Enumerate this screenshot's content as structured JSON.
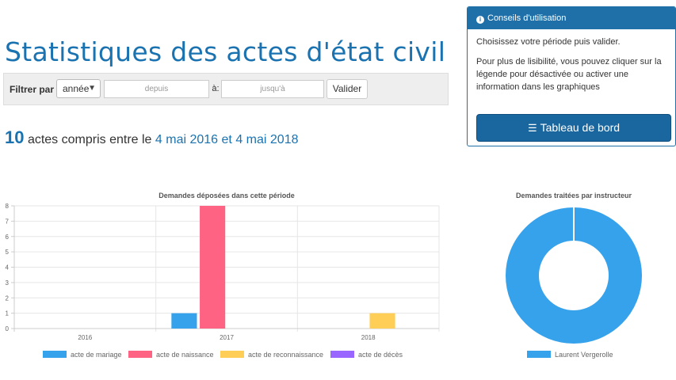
{
  "header": {
    "title": "Statistiques des actes d'état civil"
  },
  "filter": {
    "label": "Filtrer par :",
    "period_value": "année",
    "from_placeholder": "depuis",
    "between_label": "à:",
    "to_placeholder": "jusqu'à",
    "validate_label": "Valider"
  },
  "summary": {
    "count": "10",
    "text_before": "actes compris entre le",
    "date_from": "4 mai 2016",
    "connector": "et",
    "date_to": "4 mai 2018"
  },
  "help": {
    "title": "Conseils d'utilisation",
    "paragraph1": "Choisissez votre période puis valider.",
    "paragraph2": "Pour plus de lisibilité, vous pouvez cliquer sur la légende pour désactivée ou activer une information dans les graphiques",
    "dashboard_label": "Tableau de bord"
  },
  "colors": {
    "accent": "#1a73b0",
    "mariage": "#36a2eb",
    "naissance": "#ff6384",
    "reconnaissance": "#ffce56",
    "deces": "#9966ff"
  },
  "chart_data": [
    {
      "type": "bar",
      "title": "Demandes déposées dans cette période",
      "categories": [
        "2016",
        "2017",
        "2018"
      ],
      "ylim": [
        0,
        8
      ],
      "yticks": [
        0,
        1,
        2,
        3,
        4,
        5,
        6,
        7,
        8
      ],
      "grid": true,
      "legend_position": "bottom",
      "series": [
        {
          "name": "acte de mariage",
          "color": "#36a2eb",
          "values": [
            0,
            1,
            0
          ]
        },
        {
          "name": "acte de naissance",
          "color": "#ff6384",
          "values": [
            0,
            8,
            0
          ]
        },
        {
          "name": "acte de reconnaissance",
          "color": "#ffce56",
          "values": [
            0,
            0,
            1
          ]
        },
        {
          "name": "acte de décès",
          "color": "#9966ff",
          "values": [
            0,
            0,
            0
          ]
        }
      ]
    },
    {
      "type": "pie",
      "title": "Demandes traitées par instructeur",
      "legend_position": "bottom",
      "slices": [
        {
          "name": "Laurent Vergerolle",
          "value": 1,
          "color": "#36a2eb"
        }
      ]
    }
  ]
}
